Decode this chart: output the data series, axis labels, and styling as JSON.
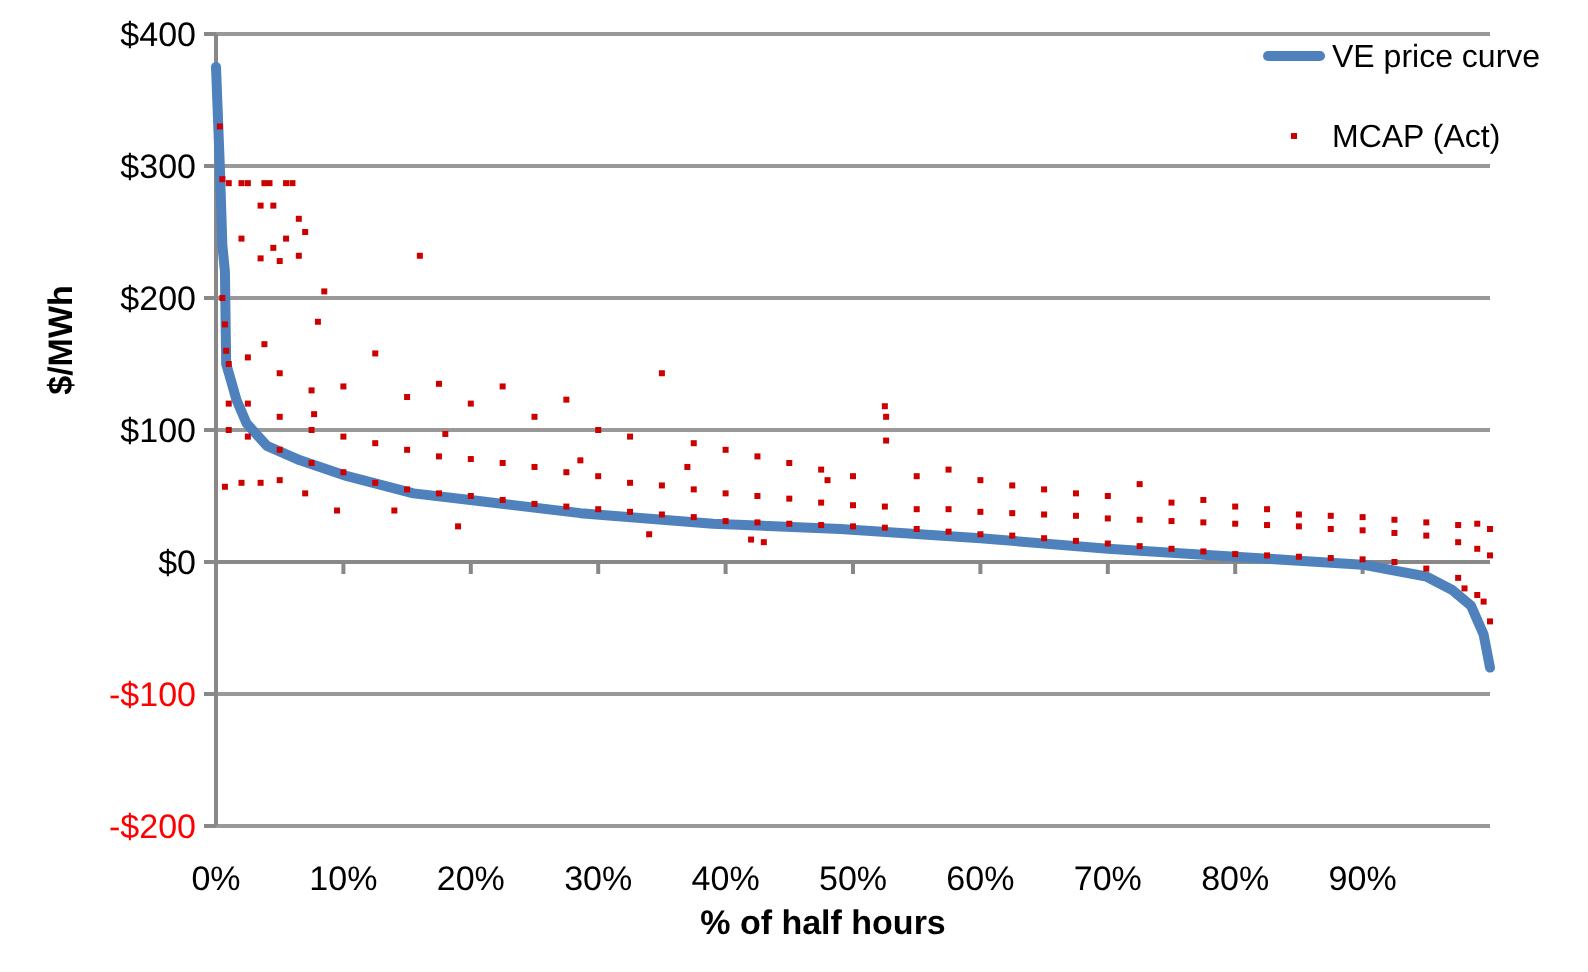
{
  "chart_data": {
    "type": "line",
    "xlabel": "% of half hours",
    "ylabel": "$/MWh",
    "xlim": [
      0,
      100
    ],
    "ylim": [
      -200,
      400
    ],
    "xticks": [
      {
        "value": 0,
        "label": "0%"
      },
      {
        "value": 10,
        "label": "10%"
      },
      {
        "value": 20,
        "label": "20%"
      },
      {
        "value": 30,
        "label": "30%"
      },
      {
        "value": 40,
        "label": "40%"
      },
      {
        "value": 50,
        "label": "50%"
      },
      {
        "value": 60,
        "label": "60%"
      },
      {
        "value": 70,
        "label": "70%"
      },
      {
        "value": 80,
        "label": "80%"
      },
      {
        "value": 90,
        "label": "90%"
      }
    ],
    "yticks": [
      {
        "value": -200,
        "label": "-$200"
      },
      {
        "value": -100,
        "label": "-$100"
      },
      {
        "value": 0,
        "label": "$0"
      },
      {
        "value": 100,
        "label": "$100"
      },
      {
        "value": 200,
        "label": "$200"
      },
      {
        "value": 300,
        "label": "$300"
      },
      {
        "value": 400,
        "label": "$400"
      }
    ],
    "grid": "y",
    "legend": "top right",
    "series": [
      {
        "name": "VE price curve",
        "color": "#4f81bd",
        "x": [
          0,
          0.3,
          0.5,
          0.7,
          0.8,
          1.1,
          1.6,
          2.4,
          4,
          6.6,
          10.3,
          15.5,
          20.8,
          28.6,
          39,
          49,
          60,
          70,
          80,
          85,
          90,
          95,
          97,
          98.5,
          99.5,
          100
        ],
        "values": [
          375,
          300,
          240,
          220,
          150,
          140,
          123,
          105,
          88,
          77,
          65,
          52,
          46,
          37,
          29,
          25,
          18,
          10,
          4,
          1,
          -2,
          -11,
          -21,
          -33,
          -55,
          -80
        ]
      },
      {
        "name": "MCAP (Act)",
        "type": "scatter",
        "color": "#cc0000",
        "marker": "square",
        "x": [
          0.3,
          0.5,
          1,
          2,
          2.5,
          3.8,
          4.2,
          5.5,
          6,
          3.5,
          4.5,
          6.5,
          7,
          2,
          5.5,
          4.5,
          3.5,
          5,
          6.5,
          8.5,
          8,
          3.8,
          16,
          0.5,
          0.7,
          0.8,
          1,
          1,
          1,
          2.5,
          2.5,
          2.5,
          5,
          5,
          5,
          7.5,
          7.5,
          7.5,
          10,
          10,
          10,
          12.5,
          12.5,
          12.5,
          15,
          15,
          15,
          17.5,
          17.5,
          17.5,
          20,
          20,
          20,
          22.5,
          22.5,
          22.5,
          25,
          25,
          25,
          27.5,
          27.5,
          27.5,
          30,
          30,
          30,
          32.5,
          32.5,
          32.5,
          35,
          35,
          35,
          37.5,
          37.5,
          37.5,
          40,
          40,
          40,
          42.5,
          42.5,
          42.5,
          45,
          45,
          45,
          47.5,
          47.5,
          47.5,
          50,
          50,
          50,
          52.5,
          52.5,
          52.5,
          55,
          55,
          55,
          57.5,
          57.5,
          57.5,
          60,
          60,
          60,
          62.5,
          62.5,
          62.5,
          65,
          65,
          65,
          67.5,
          67.5,
          67.5,
          70,
          70,
          70,
          72.5,
          72.5,
          72.5,
          75,
          75,
          75,
          77.5,
          77.5,
          77.5,
          80,
          80,
          80,
          82.5,
          82.5,
          82.5,
          85,
          85,
          85,
          87.5,
          87.5,
          87.5,
          90,
          90,
          90,
          92.5,
          92.5,
          92.5,
          95,
          95,
          95,
          97.5,
          97.5,
          97.5,
          99,
          99,
          99,
          100,
          100,
          100,
          52.6,
          52.6,
          0.7,
          2,
          3.5,
          5,
          7,
          9.5,
          14,
          19,
          34,
          42,
          43,
          99.5,
          98,
          7.7,
          18,
          28.6,
          37,
          48
        ],
        "values": [
          330,
          290,
          287,
          287,
          287,
          287,
          287,
          287,
          287,
          270,
          270,
          260,
          250,
          245,
          245,
          238,
          230,
          228,
          232,
          205,
          182,
          165,
          232,
          200,
          180,
          160,
          150,
          120,
          100,
          155,
          120,
          95,
          143,
          110,
          85,
          130,
          100,
          75,
          133,
          95,
          68,
          158,
          90,
          60,
          125,
          85,
          55,
          135,
          80,
          52,
          120,
          78,
          50,
          133,
          75,
          47,
          110,
          72,
          44,
          123,
          68,
          42,
          100,
          65,
          40,
          95,
          60,
          38,
          143,
          58,
          36,
          90,
          55,
          34,
          85,
          52,
          31,
          80,
          50,
          30,
          75,
          48,
          29,
          70,
          45,
          28,
          65,
          43,
          27,
          118,
          42,
          26,
          65,
          40,
          25,
          70,
          40,
          23,
          62,
          38,
          21,
          58,
          37,
          20,
          55,
          36,
          18,
          52,
          35,
          16,
          50,
          33,
          14,
          59,
          32,
          12,
          45,
          31,
          10,
          47,
          30,
          8,
          42,
          29,
          6,
          40,
          28,
          5,
          36,
          27,
          4,
          35,
          25,
          3,
          34,
          24,
          2,
          32,
          22,
          0,
          30,
          20,
          -5,
          28,
          15,
          -12,
          29,
          10,
          -25,
          25,
          5,
          -45,
          110,
          92,
          57,
          60,
          60,
          62,
          52,
          39,
          39,
          27,
          21,
          17,
          15,
          -30,
          -20,
          112,
          97,
          77,
          72,
          62
        ]
      }
    ]
  }
}
